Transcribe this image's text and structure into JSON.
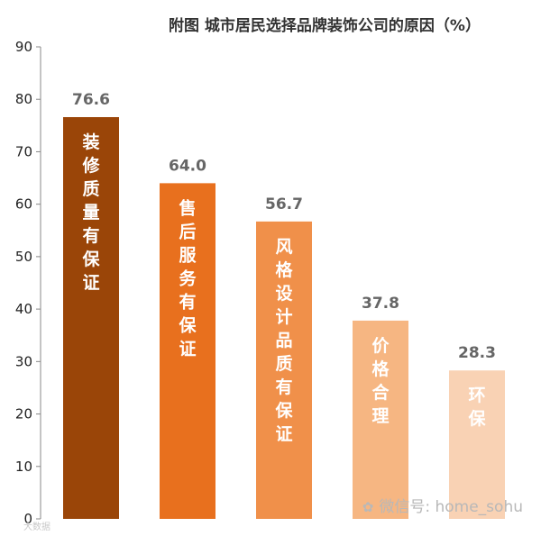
{
  "chart_data": {
    "type": "bar",
    "title": "附图 城市居民选择品牌装饰公司的原因（%）",
    "categories": [
      "装修质量有保证",
      "售后服务有保证",
      "风格设计品质有保证",
      "价格合理",
      "环保"
    ],
    "values": [
      76.6,
      64.0,
      56.7,
      37.8,
      28.3
    ],
    "value_labels": [
      "76.6",
      "64.0",
      "56.7",
      "37.8",
      "28.3"
    ],
    "colors": [
      "#9a4508",
      "#e8701e",
      "#f0904a",
      "#f6b682",
      "#f9d2b4"
    ],
    "ylim": [
      0,
      90
    ],
    "yticks": [
      0,
      10,
      20,
      30,
      40,
      50,
      60,
      70,
      80,
      90
    ],
    "xlabel": "",
    "ylabel": "",
    "grid": false,
    "legend": "none"
  },
  "watermark": {
    "text": "微信号: home_sohu",
    "icon": "wechat-icon"
  },
  "corner_mark": "大数据"
}
